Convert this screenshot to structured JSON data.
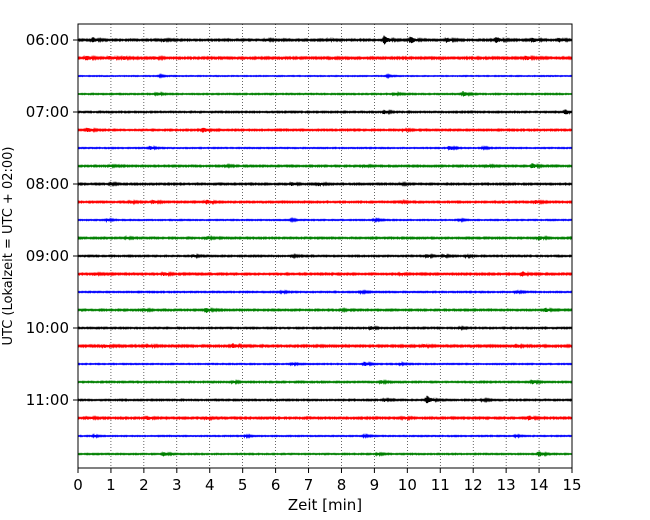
{
  "chart_data": {
    "type": "line",
    "title": "",
    "xlabel": "Zeit  [min]",
    "ylabel": "UTC (Lokalzeit = UTC + 02:00)",
    "xlim": [
      0,
      15
    ],
    "x_ticks": [
      "0",
      "1",
      "2",
      "3",
      "4",
      "5",
      "6",
      "7",
      "8",
      "9",
      "10",
      "11",
      "12",
      "13",
      "14",
      "15"
    ],
    "y_ticks": [
      "06:00",
      "07:00",
      "08:00",
      "09:00",
      "10:00",
      "11:00"
    ],
    "grid": "vertical dotted at each minute",
    "colors": [
      "#000000",
      "#ff0000",
      "#0000ff",
      "#008000"
    ],
    "row_interval_minutes": 15,
    "traces": [
      {
        "start": "06:00",
        "color": "#000000",
        "noise": 0.55,
        "events": [
          [
            0.45,
            2.5
          ],
          [
            2.6,
            1.4
          ],
          [
            5.7,
            1.2
          ],
          [
            7.6,
            1.3
          ],
          [
            9.3,
            4.0
          ],
          [
            10.1,
            3.4
          ],
          [
            11.2,
            2.2
          ],
          [
            12.7,
            3.2
          ],
          [
            13.8,
            2.6
          ],
          [
            14.6,
            2.0
          ]
        ]
      },
      {
        "start": "06:15",
        "color": "#ff0000",
        "noise": 0.6,
        "events": [
          [
            0.25,
            2.3
          ],
          [
            0.95,
            2.0
          ],
          [
            1.4,
            1.5
          ],
          [
            2.3,
            1.6
          ],
          [
            13.6,
            2.4
          ]
        ]
      },
      {
        "start": "06:30",
        "color": "#0000ff",
        "noise": 0.3,
        "events": [
          [
            2.5,
            0.9
          ],
          [
            9.4,
            0.9
          ]
        ]
      },
      {
        "start": "06:45",
        "color": "#008000",
        "noise": 0.4,
        "events": [
          [
            2.4,
            1.8
          ],
          [
            9.6,
            1.5
          ],
          [
            11.7,
            2.6
          ]
        ]
      },
      {
        "start": "07:00",
        "color": "#000000",
        "noise": 0.45,
        "events": [
          [
            9.3,
            2.0
          ],
          [
            14.8,
            2.6
          ]
        ]
      },
      {
        "start": "07:15",
        "color": "#ff0000",
        "noise": 0.5,
        "events": [
          [
            0.3,
            2.1
          ],
          [
            3.8,
            2.5
          ],
          [
            9.9,
            1.0
          ]
        ]
      },
      {
        "start": "07:30",
        "color": "#0000ff",
        "noise": 0.35,
        "events": [
          [
            2.2,
            1.6
          ],
          [
            11.3,
            2.2
          ],
          [
            12.3,
            1.0
          ]
        ]
      },
      {
        "start": "07:45",
        "color": "#008000",
        "noise": 0.5,
        "events": [
          [
            1.0,
            1.0
          ],
          [
            4.5,
            1.2
          ],
          [
            8.7,
            1.3
          ],
          [
            12.4,
            1.2
          ],
          [
            13.8,
            2.4
          ]
        ]
      },
      {
        "start": "08:00",
        "color": "#000000",
        "noise": 0.5,
        "events": [
          [
            1.0,
            1.2
          ],
          [
            6.5,
            1.8
          ],
          [
            7.3,
            1.6
          ],
          [
            9.8,
            1.0
          ]
        ]
      },
      {
        "start": "08:15",
        "color": "#ff0000",
        "noise": 0.5,
        "events": [
          [
            1.6,
            1.4
          ],
          [
            2.3,
            1.5
          ],
          [
            3.9,
            2.4
          ],
          [
            9.8,
            1.2
          ],
          [
            13.9,
            1.6
          ]
        ]
      },
      {
        "start": "08:30",
        "color": "#0000ff",
        "noise": 0.35,
        "events": [
          [
            0.9,
            1.2
          ],
          [
            6.5,
            1.0
          ],
          [
            9.0,
            1.3
          ],
          [
            11.6,
            1.1
          ]
        ]
      },
      {
        "start": "08:45",
        "color": "#008000",
        "noise": 0.5,
        "events": [
          [
            1.5,
            1.0
          ],
          [
            3.9,
            1.7
          ],
          [
            14.0,
            2.1
          ]
        ]
      },
      {
        "start": "09:00",
        "color": "#000000",
        "noise": 0.45,
        "events": [
          [
            3.5,
            1.2
          ],
          [
            6.5,
            1.2
          ],
          [
            10.6,
            1.6
          ],
          [
            11.1,
            1.4
          ],
          [
            11.8,
            1.0
          ]
        ]
      },
      {
        "start": "09:15",
        "color": "#ff0000",
        "noise": 0.55,
        "events": [
          [
            0.5,
            1.5
          ],
          [
            2.6,
            1.8
          ],
          [
            9.8,
            1.0
          ],
          [
            13.5,
            2.3
          ]
        ]
      },
      {
        "start": "09:30",
        "color": "#0000ff",
        "noise": 0.4,
        "events": [
          [
            6.2,
            1.0
          ],
          [
            8.6,
            1.1
          ],
          [
            13.3,
            1.4
          ]
        ]
      },
      {
        "start": "09:45",
        "color": "#008000",
        "noise": 0.5,
        "events": [
          [
            2.0,
            1.3
          ],
          [
            3.9,
            2.3
          ],
          [
            8.0,
            1.0
          ],
          [
            14.2,
            1.8
          ]
        ]
      },
      {
        "start": "10:00",
        "color": "#000000",
        "noise": 0.45,
        "events": [
          [
            8.9,
            1.5
          ],
          [
            11.6,
            1.0
          ]
        ]
      },
      {
        "start": "10:15",
        "color": "#ff0000",
        "noise": 0.6,
        "events": [
          [
            0.8,
            1.5
          ],
          [
            2.1,
            1.9
          ],
          [
            4.7,
            2.4
          ],
          [
            10.5,
            1.2
          ],
          [
            13.3,
            1.8
          ]
        ]
      },
      {
        "start": "10:30",
        "color": "#0000ff",
        "noise": 0.35,
        "events": [
          [
            6.5,
            1.3
          ],
          [
            8.7,
            2.1
          ],
          [
            9.8,
            1.1
          ]
        ]
      },
      {
        "start": "10:45",
        "color": "#008000",
        "noise": 0.45,
        "events": [
          [
            4.7,
            1.3
          ],
          [
            9.2,
            1.6
          ],
          [
            13.8,
            2.0
          ]
        ]
      },
      {
        "start": "11:00",
        "color": "#000000",
        "noise": 0.45,
        "events": [
          [
            9.3,
            1.3
          ],
          [
            10.6,
            3.9
          ],
          [
            12.3,
            1.0
          ]
        ]
      },
      {
        "start": "11:15",
        "color": "#ff0000",
        "noise": 0.55,
        "events": [
          [
            0.3,
            1.5
          ],
          [
            2.1,
            1.8
          ],
          [
            3.9,
            1.3
          ],
          [
            9.9,
            1.3
          ],
          [
            13.7,
            2.4
          ]
        ]
      },
      {
        "start": "11:30",
        "color": "#0000ff",
        "noise": 0.35,
        "events": [
          [
            0.5,
            1.0
          ],
          [
            5.1,
            1.2
          ],
          [
            8.7,
            1.0
          ],
          [
            13.3,
            1.0
          ]
        ]
      },
      {
        "start": "11:45",
        "color": "#008000",
        "noise": 0.4,
        "events": [
          [
            2.6,
            2.0
          ],
          [
            9.1,
            1.2
          ],
          [
            14.0,
            2.6
          ]
        ]
      }
    ]
  }
}
